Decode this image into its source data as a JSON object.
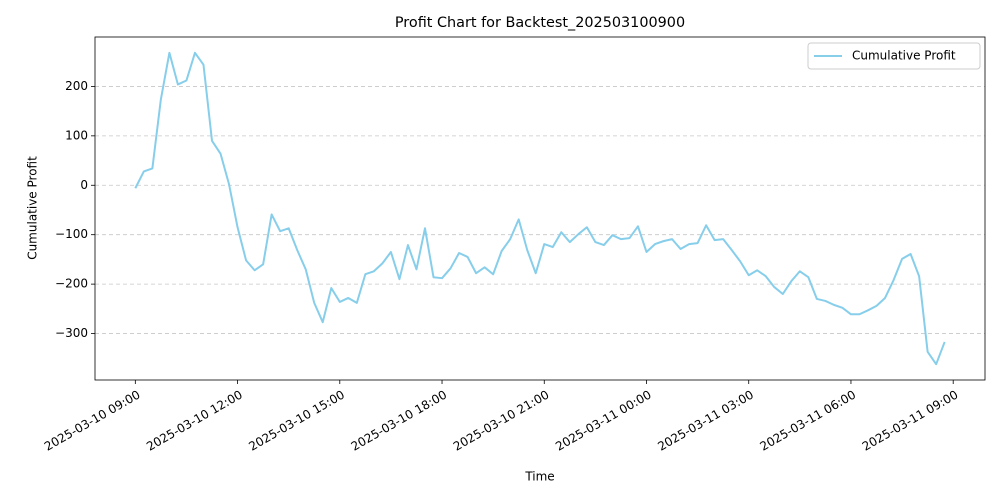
{
  "chart_data": {
    "type": "line",
    "title": "Profit Chart for Backtest_202503100900",
    "x_label": "Time",
    "y_label": "Cumulative Profit",
    "x": [
      "2025-03-10 09:00",
      "2025-03-10 09:15",
      "2025-03-10 09:30",
      "2025-03-10 09:45",
      "2025-03-10 10:00",
      "2025-03-10 10:15",
      "2025-03-10 10:30",
      "2025-03-10 10:45",
      "2025-03-10 11:00",
      "2025-03-10 11:15",
      "2025-03-10 11:30",
      "2025-03-10 11:45",
      "2025-03-10 12:00",
      "2025-03-10 12:15",
      "2025-03-10 12:30",
      "2025-03-10 12:45",
      "2025-03-10 13:00",
      "2025-03-10 13:15",
      "2025-03-10 13:30",
      "2025-03-10 13:45",
      "2025-03-10 14:00",
      "2025-03-10 14:15",
      "2025-03-10 14:30",
      "2025-03-10 14:45",
      "2025-03-10 15:00",
      "2025-03-10 15:15",
      "2025-03-10 15:30",
      "2025-03-10 15:45",
      "2025-03-10 16:00",
      "2025-03-10 16:15",
      "2025-03-10 16:30",
      "2025-03-10 16:45",
      "2025-03-10 17:00",
      "2025-03-10 17:15",
      "2025-03-10 17:30",
      "2025-03-10 17:45",
      "2025-03-10 18:00",
      "2025-03-10 18:15",
      "2025-03-10 18:30",
      "2025-03-10 18:45",
      "2025-03-10 19:00",
      "2025-03-10 19:15",
      "2025-03-10 19:30",
      "2025-03-10 19:45",
      "2025-03-10 20:00",
      "2025-03-10 20:15",
      "2025-03-10 20:30",
      "2025-03-10 20:45",
      "2025-03-10 21:00",
      "2025-03-10 21:15",
      "2025-03-10 21:30",
      "2025-03-10 21:45",
      "2025-03-10 22:00",
      "2025-03-10 22:15",
      "2025-03-10 22:30",
      "2025-03-10 22:45",
      "2025-03-10 23:00",
      "2025-03-10 23:15",
      "2025-03-10 23:30",
      "2025-03-10 23:45",
      "2025-03-11 00:00",
      "2025-03-11 00:15",
      "2025-03-11 00:30",
      "2025-03-11 00:45",
      "2025-03-11 01:00",
      "2025-03-11 01:15",
      "2025-03-11 01:30",
      "2025-03-11 01:45",
      "2025-03-11 02:00",
      "2025-03-11 02:15",
      "2025-03-11 02:30",
      "2025-03-11 02:45",
      "2025-03-11 03:00",
      "2025-03-11 03:15",
      "2025-03-11 03:30",
      "2025-03-11 03:45",
      "2025-03-11 04:00",
      "2025-03-11 04:15",
      "2025-03-11 04:30",
      "2025-03-11 04:45",
      "2025-03-11 05:00",
      "2025-03-11 05:15",
      "2025-03-11 05:30",
      "2025-03-11 05:45",
      "2025-03-11 06:00",
      "2025-03-11 06:15",
      "2025-03-11 06:30",
      "2025-03-11 06:45",
      "2025-03-11 07:00",
      "2025-03-11 07:15",
      "2025-03-11 07:30",
      "2025-03-11 07:45",
      "2025-03-11 08:00",
      "2025-03-11 08:15",
      "2025-03-11 08:30",
      "2025-03-11 08:45"
    ],
    "series": [
      {
        "name": "Cumulative Profit",
        "color": "#87ceeb",
        "values": [
          -6,
          28,
          34,
          174,
          268,
          204,
          212,
          268,
          244,
          90,
          64,
          2,
          -85,
          -152,
          -172,
          -160,
          -59,
          -93,
          -87,
          -131,
          -170,
          -238,
          -277,
          -208,
          -236,
          -228,
          -238,
          -180,
          -174,
          -158,
          -135,
          -190,
          -121,
          -170,
          -87,
          -186,
          -188,
          -168,
          -137,
          -145,
          -178,
          -166,
          -180,
          -133,
          -109,
          -69,
          -131,
          -178,
          -119,
          -125,
          -95,
          -115,
          -99,
          -85,
          -115,
          -121,
          -101,
          -109,
          -107,
          -83,
          -135,
          -119,
          -113,
          -109,
          -129,
          -119,
          -117,
          -81,
          -111,
          -109,
          -131,
          -154,
          -182,
          -172,
          -184,
          -206,
          -220,
          -194,
          -174,
          -186,
          -230,
          -234,
          -242,
          -248,
          -261,
          -261,
          -253,
          -244,
          -228,
          -192,
          -149,
          -139,
          -184,
          -337,
          -362,
          -317
        ]
      }
    ],
    "xlim": [
      "2025-03-10 07:49",
      "2025-03-11 09:56"
    ],
    "xticks": [
      "2025-03-10 09:00",
      "2025-03-10 12:00",
      "2025-03-10 15:00",
      "2025-03-10 18:00",
      "2025-03-10 21:00",
      "2025-03-11 00:00",
      "2025-03-11 03:00",
      "2025-03-11 06:00",
      "2025-03-11 09:00"
    ],
    "ylim": [
      -394,
      300
    ],
    "yticks": [
      {
        "value": -300,
        "label": "−300"
      },
      {
        "value": -200,
        "label": "−200"
      },
      {
        "value": -100,
        "label": "−100"
      },
      0,
      100,
      200
    ],
    "grid": true,
    "legend": "upper right"
  }
}
